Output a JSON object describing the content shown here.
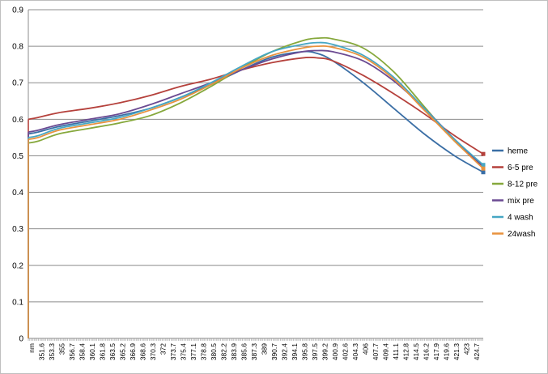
{
  "chart_data": {
    "type": "line",
    "title": "",
    "xlabel": "",
    "ylabel": "",
    "ylim": [
      0,
      0.9
    ],
    "yticks": [
      "0",
      "0.1",
      "0.2",
      "0.3",
      "0.4",
      "0.5",
      "0.6",
      "0.7",
      "0.8",
      "0.9"
    ],
    "x_tick_labels": [
      "nm",
      "351.6",
      "353.3",
      "355",
      "356.7",
      "358.4",
      "360.1",
      "361.8",
      "363.5",
      "365.2",
      "366.9",
      "368.6",
      "370.3",
      "372",
      "373.7",
      "375.4",
      "377.1",
      "378.8",
      "380.5",
      "382.2",
      "383.9",
      "385.6",
      "387.3",
      "389",
      "390.7",
      "392.4",
      "394.1",
      "395.8",
      "397.5",
      "399.2",
      "400.9",
      "402.6",
      "404.3",
      "406",
      "407.7",
      "409.4",
      "411.1",
      "412.8",
      "414.5",
      "416.2",
      "417.9",
      "419.6",
      "421.3",
      "423",
      "424.7"
    ],
    "xlim": [
      350,
      424.7
    ],
    "grid": "horizontal",
    "legend_position": "right",
    "x": [
      350,
      351.6,
      355,
      360,
      365,
      370,
      375,
      380,
      385,
      390,
      395,
      397.5,
      400,
      405,
      410,
      415,
      420,
      424.7
    ],
    "series": [
      {
        "name": "heme",
        "color": "#3a6ea5",
        "values": [
          0.56,
          0.565,
          0.58,
          0.595,
          0.61,
          0.63,
          0.66,
          0.695,
          0.735,
          0.77,
          0.785,
          0.78,
          0.76,
          0.7,
          0.63,
          0.56,
          0.5,
          0.455
        ]
      },
      {
        "name": "6-5 pre",
        "color": "#b5413c",
        "values": [
          0.6,
          0.605,
          0.618,
          0.63,
          0.645,
          0.665,
          0.69,
          0.71,
          0.735,
          0.755,
          0.768,
          0.768,
          0.76,
          0.72,
          0.67,
          0.615,
          0.555,
          0.505
        ]
      },
      {
        "name": "8-12 pre",
        "color": "#86a83c",
        "values": [
          0.535,
          0.54,
          0.56,
          0.575,
          0.59,
          0.61,
          0.645,
          0.69,
          0.74,
          0.785,
          0.815,
          0.822,
          0.82,
          0.795,
          0.73,
          0.635,
          0.54,
          0.47
        ]
      },
      {
        "name": "mix pre",
        "color": "#6b4a92",
        "values": [
          0.565,
          0.57,
          0.585,
          0.6,
          0.615,
          0.64,
          0.67,
          0.7,
          0.735,
          0.765,
          0.785,
          0.788,
          0.785,
          0.76,
          0.705,
          0.63,
          0.545,
          0.47
        ]
      },
      {
        "name": "4 wash",
        "color": "#46a7c4",
        "values": [
          0.55,
          0.555,
          0.575,
          0.59,
          0.605,
          0.63,
          0.66,
          0.7,
          0.745,
          0.785,
          0.805,
          0.81,
          0.805,
          0.775,
          0.715,
          0.63,
          0.545,
          0.475
        ]
      },
      {
        "name": "24wash",
        "color": "#e8923e",
        "values": [
          0.545,
          0.55,
          0.57,
          0.585,
          0.6,
          0.625,
          0.655,
          0.695,
          0.74,
          0.775,
          0.795,
          0.8,
          0.797,
          0.77,
          0.71,
          0.625,
          0.54,
          0.465
        ]
      }
    ]
  }
}
